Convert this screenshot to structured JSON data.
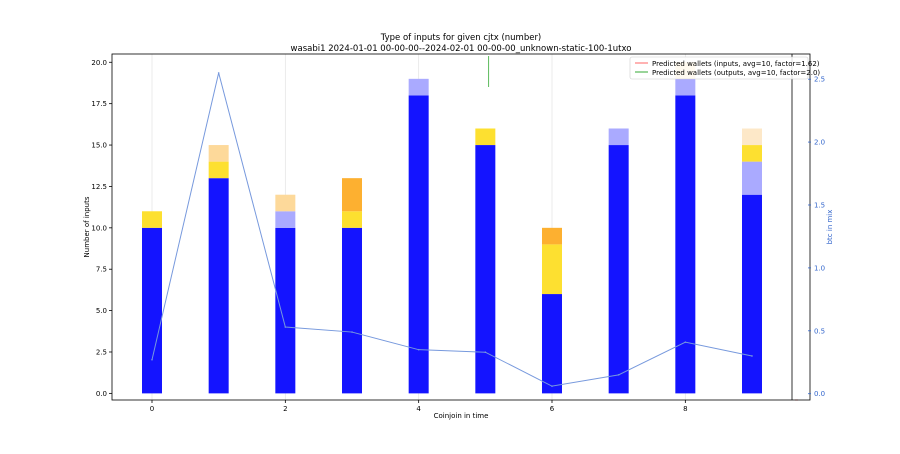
{
  "chart_data": {
    "type": "bar",
    "title": "Type of inputs for given cjtx (number)",
    "subtitle": "wasabi1 2024-01-01 00-00-00--2024-02-01 00-00-00_unknown-static-100-1utxo",
    "xlabel": "Coinjoin in time",
    "ylabel": "Number of inputs",
    "y2label": "btc in mix",
    "x": [
      0,
      1,
      2,
      3,
      4,
      5,
      6,
      7,
      8,
      9
    ],
    "xlim": [
      -0.6,
      9.6
    ],
    "ylim": [
      -0.4,
      20.5
    ],
    "y2lim": [
      -0.05,
      2.7
    ],
    "x_ticks": [
      0,
      2,
      4,
      6,
      8
    ],
    "y_ticks": [
      0.0,
      2.5,
      5.0,
      7.5,
      10.0,
      12.5,
      15.0,
      17.5,
      20.0
    ],
    "y_tick_labels": [
      "0.0",
      "2.5",
      "5.0",
      "7.5",
      "10.0",
      "12.5",
      "15.0",
      "17.5",
      "20.0"
    ],
    "y2_ticks": [
      0.0,
      0.5,
      1.0,
      1.5,
      2.0,
      2.5
    ],
    "y2_tick_labels": [
      "0.0",
      "0.5",
      "1.0",
      "1.5",
      "2.0",
      "2.5"
    ],
    "stack_colors": [
      "#1414ff",
      "#aaaaff",
      "#fde030",
      "#fdb030",
      "#fdd99a",
      "#fde8c8"
    ],
    "series": [
      {
        "values": [
          10,
          13,
          10,
          10,
          18,
          15,
          6,
          15,
          18,
          12
        ]
      },
      {
        "values": [
          0,
          0,
          1,
          0,
          1,
          0,
          0,
          1,
          1,
          2
        ]
      },
      {
        "values": [
          1,
          1,
          0,
          1,
          0,
          1,
          3,
          0,
          0,
          1
        ]
      },
      {
        "values": [
          0,
          0,
          0,
          2,
          0,
          0,
          1,
          0,
          0,
          0
        ]
      },
      {
        "values": [
          0,
          1,
          1,
          0,
          0,
          0,
          0,
          0,
          1,
          0
        ]
      },
      {
        "values": [
          0,
          0,
          0,
          0,
          0,
          0,
          0,
          0,
          0,
          1
        ]
      }
    ],
    "line_series": {
      "axis": "right",
      "color": "#7799dd",
      "values": [
        0.27,
        2.55,
        0.53,
        0.49,
        0.35,
        0.33,
        0.06,
        0.15,
        0.41,
        0.3
      ]
    },
    "legend": {
      "placement": "top-right",
      "entries": [
        {
          "label": "Predicted wallets (inputs, avg=10, factor=1.62)",
          "color": "#ff6666"
        },
        {
          "label": "Predicted wallets (outputs, avg=10, factor=2.0)",
          "color": "#33aa33"
        }
      ]
    },
    "vertical_gridlines_at": [
      0,
      2,
      4,
      6,
      8
    ],
    "grid": "vertical-only"
  }
}
